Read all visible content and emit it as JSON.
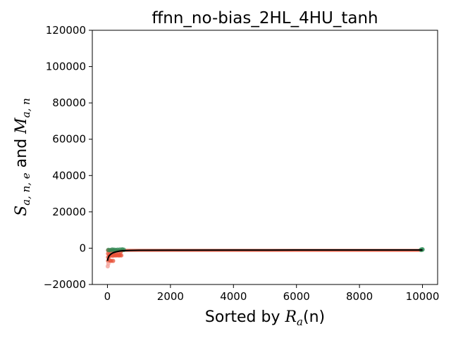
{
  "chart_data": {
    "type": "scatter",
    "title": "ffnn_no-bias_2HL_4HU_tanh",
    "xlabel": {
      "prefix": "Sorted by ",
      "math": "R",
      "math_sub": "a",
      "suffix": "(n)"
    },
    "ylabel": {
      "s": "S",
      "s_sub": "a, n, e",
      "and": " and ",
      "m": "M",
      "m_sub": "a, n"
    },
    "xlim": [
      -480,
      10480
    ],
    "ylim": [
      -20000,
      120000
    ],
    "x_ticks": [
      0,
      2000,
      4000,
      6000,
      8000,
      10000
    ],
    "x_tick_labels": [
      "0",
      "2000",
      "4000",
      "6000",
      "8000",
      "10000"
    ],
    "y_ticks": [
      -20000,
      0,
      20000,
      40000,
      60000,
      80000,
      100000,
      120000
    ],
    "y_tick_labels": [
      "−20000",
      "0",
      "20000",
      "40000",
      "60000",
      "80000",
      "100000",
      "120000"
    ],
    "grid": false,
    "colors": {
      "band": "#e8533a",
      "green": "#2e8b57",
      "mean_line": "#000000",
      "light_red": "#f4a29a"
    },
    "series": [
      {
        "points": [
          [
            20,
            -1200
          ],
          [
            20,
            -3000
          ],
          [
            20,
            -5000
          ],
          [
            20,
            -7000
          ],
          [
            10,
            -10000
          ],
          [
            30,
            -8500
          ],
          [
            60,
            -1200
          ],
          [
            60,
            -3500
          ],
          [
            60,
            -4500
          ],
          [
            80,
            -6800
          ],
          [
            100,
            -1200
          ],
          [
            100,
            -4000
          ],
          [
            120,
            -7000
          ],
          [
            140,
            -1200
          ],
          [
            140,
            -3000
          ],
          [
            160,
            -4200
          ],
          [
            180,
            -7000
          ],
          [
            200,
            -1200
          ],
          [
            200,
            -4000
          ],
          [
            220,
            -3500
          ],
          [
            240,
            -4000
          ],
          [
            260,
            -3000
          ],
          [
            280,
            -4000
          ],
          [
            300,
            -3800
          ],
          [
            320,
            -1500
          ],
          [
            340,
            -4000
          ],
          [
            360,
            -3500
          ],
          [
            380,
            -4000
          ],
          [
            400,
            -3800
          ],
          [
            420,
            -2000
          ],
          [
            440,
            -4000
          ],
          [
            460,
            -1200
          ]
        ]
      },
      {
        "points": [
          [
            30,
            -1000
          ],
          [
            90,
            -1100
          ],
          [
            150,
            -800
          ],
          [
            210,
            -900
          ],
          [
            270,
            -1000
          ],
          [
            330,
            -900
          ],
          [
            400,
            -800
          ],
          [
            470,
            -700
          ],
          [
            520,
            -900
          ],
          [
            9980,
            -800
          ],
          [
            10000,
            -700
          ],
          [
            9950,
            -900
          ]
        ]
      },
      {
        "points": [
          [
            0,
            -7000
          ],
          [
            20,
            -5500
          ],
          [
            50,
            -4300
          ],
          [
            100,
            -3400
          ],
          [
            150,
            -2800
          ],
          [
            200,
            -2400
          ],
          [
            300,
            -1900
          ],
          [
            400,
            -1600
          ],
          [
            500,
            -1400
          ],
          [
            700,
            -1250
          ],
          [
            1000,
            -1150
          ],
          [
            2000,
            -1100
          ],
          [
            4000,
            -1050
          ],
          [
            6000,
            -1020
          ],
          [
            8000,
            -1000
          ],
          [
            10000,
            -1000
          ]
        ]
      }
    ],
    "band": {
      "x": [
        0,
        10000
      ],
      "y_low": -2000,
      "y_high": -400
    }
  }
}
